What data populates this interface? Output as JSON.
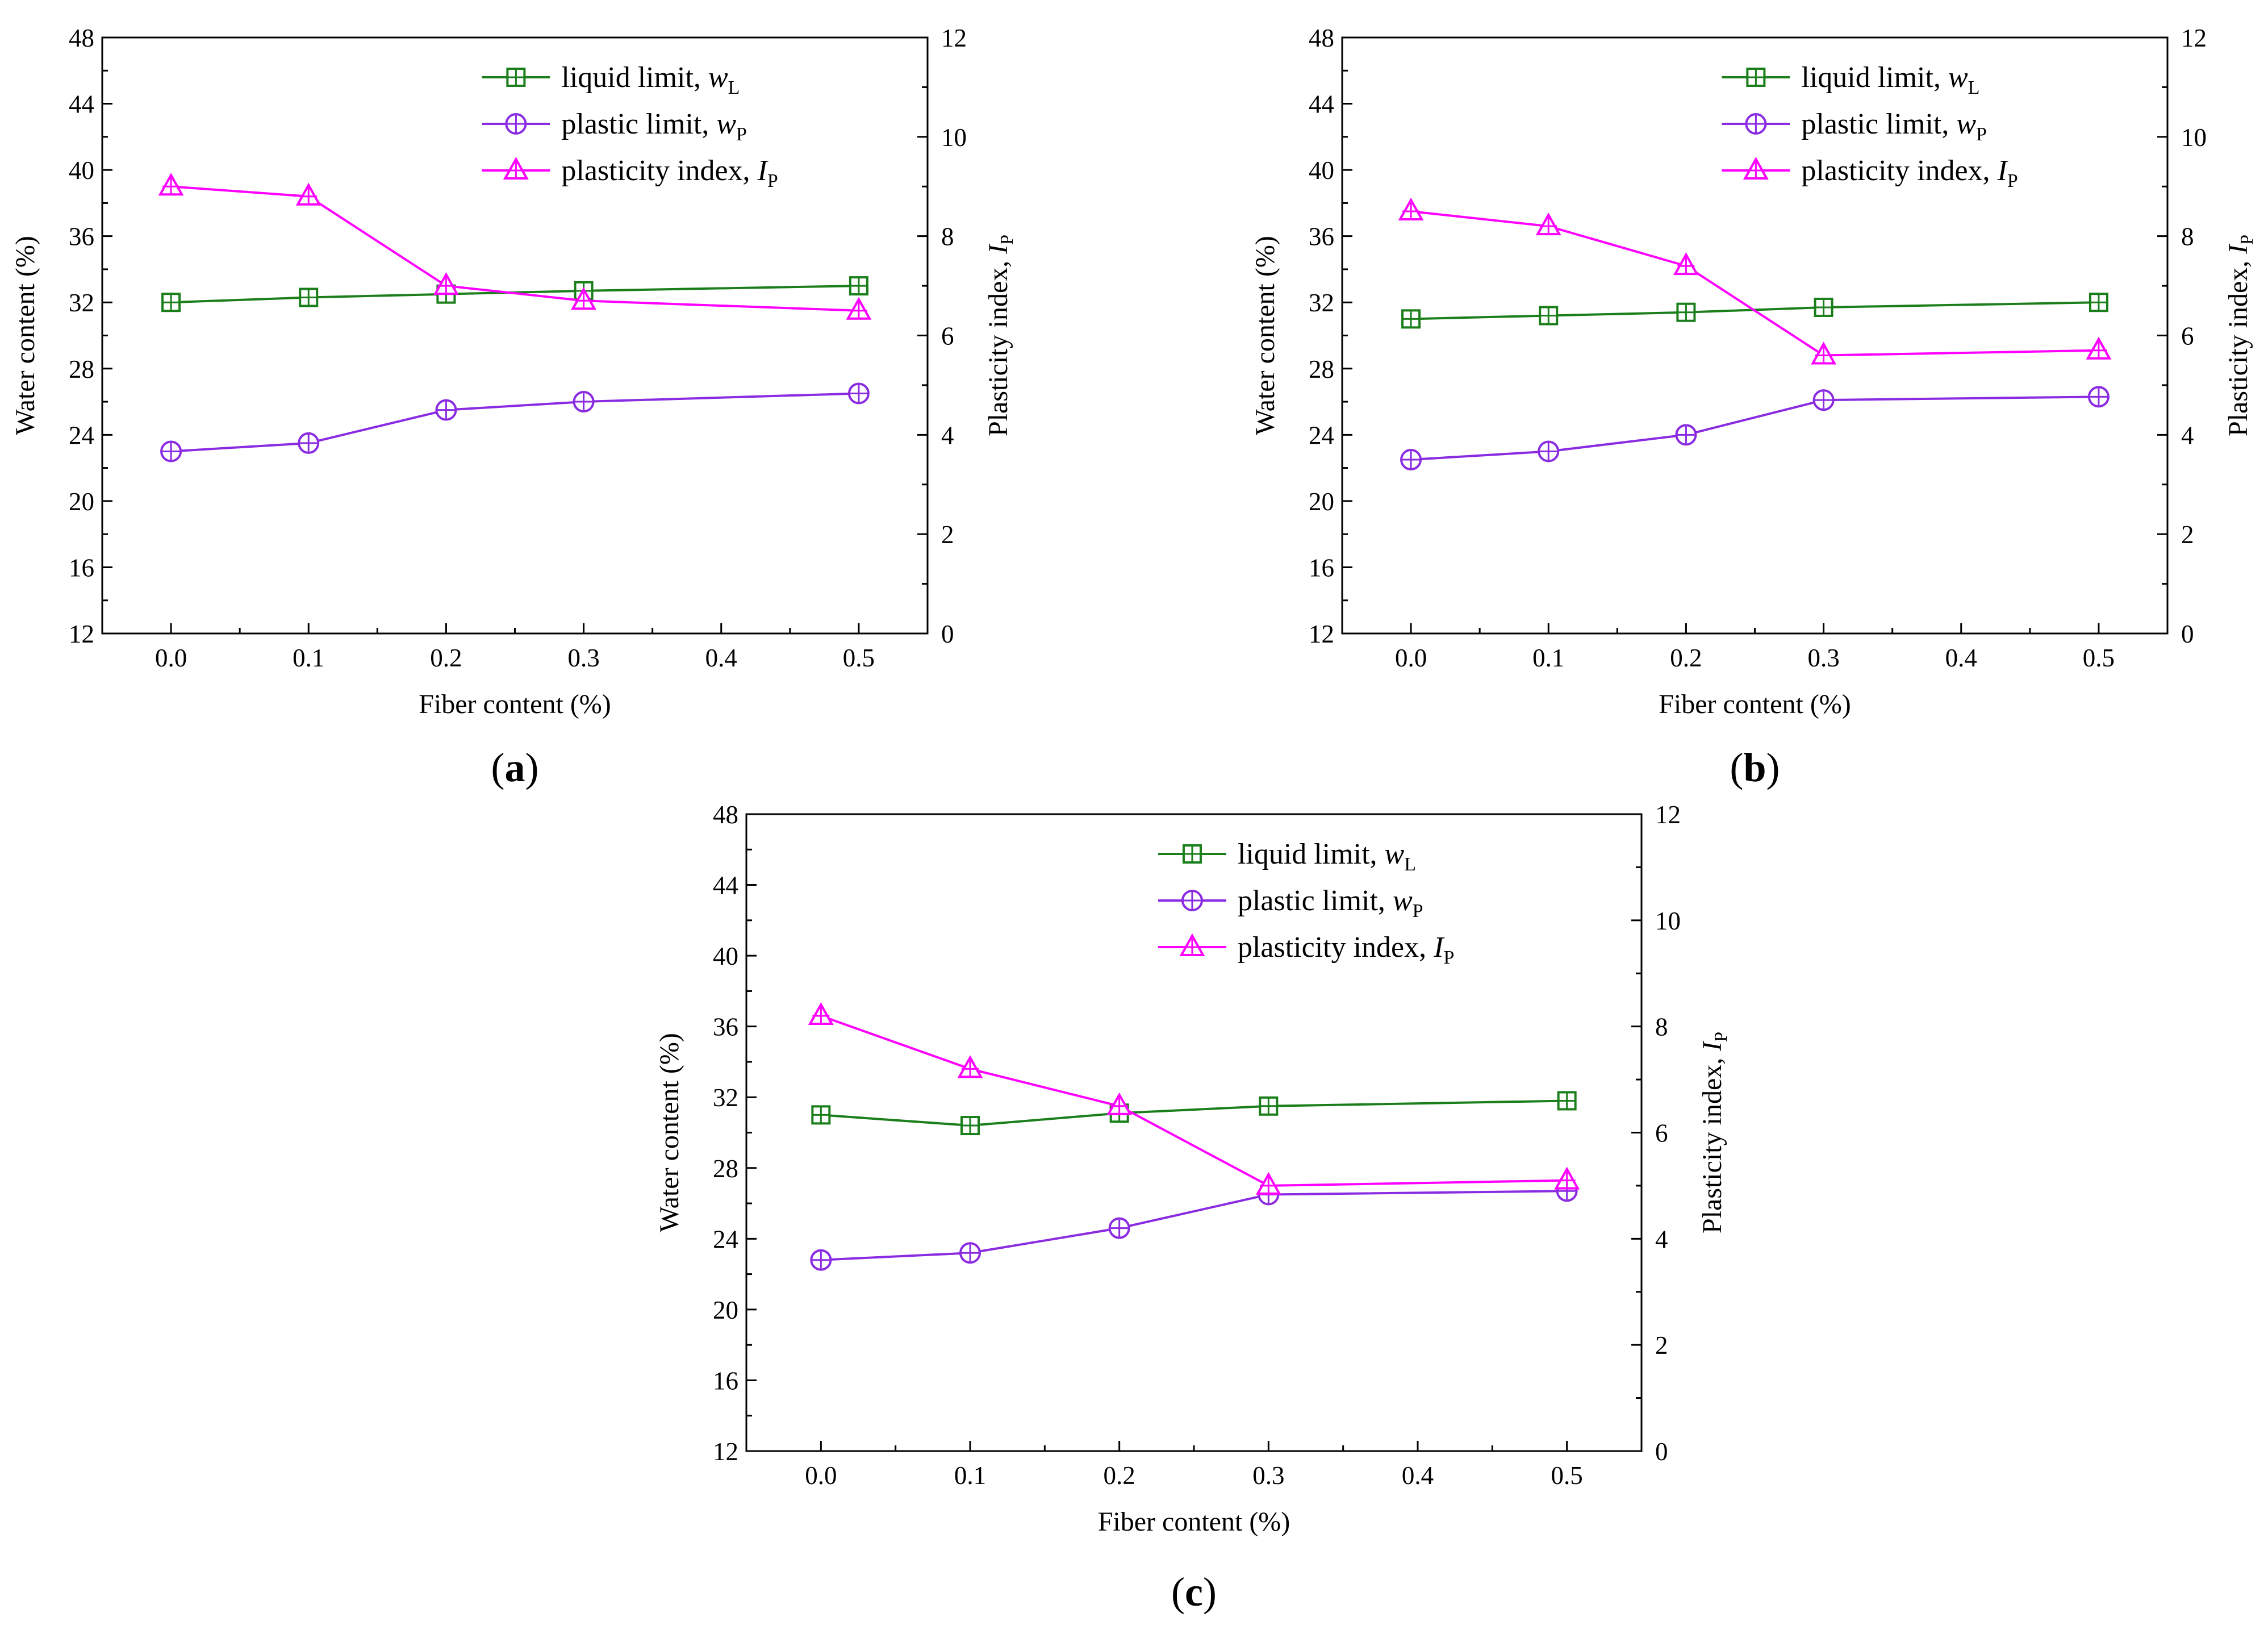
{
  "chart_data": [
    {
      "type": "line",
      "panel_label": "a",
      "xlabel": "Fiber content (%)",
      "ylabel_left": "Water content (%)",
      "ylabel_right": {
        "text": "Plasticity index, ",
        "var": "I",
        "sub": "P"
      },
      "x": [
        0.0,
        0.1,
        0.2,
        0.3,
        0.5
      ],
      "xlim": [
        -0.05,
        0.55
      ],
      "xticks": [
        "0.0",
        "0.1",
        "0.2",
        "0.3",
        "0.4",
        "0.5"
      ],
      "ylim_left": [
        12,
        48
      ],
      "yticks_left": [
        "12",
        "16",
        "20",
        "24",
        "28",
        "32",
        "36",
        "40",
        "44",
        "48"
      ],
      "ylim_right": [
        0,
        12
      ],
      "yticks_right": [
        "0",
        "2",
        "4",
        "6",
        "8",
        "10",
        "12"
      ],
      "series": [
        {
          "name": "liquid limit, ",
          "var": "w",
          "sub": "L",
          "axis": "left",
          "marker": "square",
          "color": "#1a7f1a",
          "values": [
            32.0,
            32.3,
            32.5,
            32.7,
            33.0
          ]
        },
        {
          "name": "plastic limit, ",
          "var": "w",
          "sub": "P",
          "axis": "left",
          "marker": "circle",
          "color": "#8a2be2",
          "values": [
            23.0,
            23.5,
            25.5,
            26.0,
            26.5
          ]
        },
        {
          "name": "plasticity index,  ",
          "var": "I",
          "sub": "P",
          "axis": "right",
          "marker": "triangle",
          "color": "#ff00ff",
          "values": [
            9.0,
            8.8,
            7.0,
            6.7,
            6.5
          ]
        }
      ]
    },
    {
      "type": "line",
      "panel_label": "b",
      "xlabel": "Fiber content (%)",
      "ylabel_left": "Water content (%)",
      "ylabel_right": {
        "text": "Plasticity index, ",
        "var": "I",
        "sub": "P"
      },
      "x": [
        0.0,
        0.1,
        0.2,
        0.3,
        0.5
      ],
      "xlim": [
        -0.05,
        0.55
      ],
      "xticks": [
        "0.0",
        "0.1",
        "0.2",
        "0.3",
        "0.4",
        "0.5"
      ],
      "ylim_left": [
        12,
        48
      ],
      "yticks_left": [
        "12",
        "16",
        "20",
        "24",
        "28",
        "32",
        "36",
        "40",
        "44",
        "48"
      ],
      "ylim_right": [
        0,
        12
      ],
      "yticks_right": [
        "0",
        "2",
        "4",
        "6",
        "8",
        "10",
        "12"
      ],
      "series": [
        {
          "name": "liquid limit, ",
          "var": "w",
          "sub": "L",
          "axis": "left",
          "marker": "square",
          "color": "#1a7f1a",
          "values": [
            31.0,
            31.2,
            31.4,
            31.7,
            32.0
          ]
        },
        {
          "name": "plastic limit, ",
          "var": "w",
          "sub": "P",
          "axis": "left",
          "marker": "circle",
          "color": "#8a2be2",
          "values": [
            22.5,
            23.0,
            24.0,
            26.1,
            26.3
          ]
        },
        {
          "name": "plasticity index,  ",
          "var": "I",
          "sub": "P",
          "axis": "right",
          "marker": "triangle",
          "color": "#ff00ff",
          "values": [
            8.5,
            8.2,
            7.4,
            5.6,
            5.7
          ]
        }
      ]
    },
    {
      "type": "line",
      "panel_label": "c",
      "xlabel": "Fiber content (%)",
      "ylabel_left": "Water content (%)",
      "ylabel_right": {
        "text": "Plasticity index, ",
        "var": "I",
        "sub": "P"
      },
      "x": [
        0.0,
        0.1,
        0.2,
        0.3,
        0.5
      ],
      "xlim": [
        -0.05,
        0.55
      ],
      "xticks": [
        "0.0",
        "0.1",
        "0.2",
        "0.3",
        "0.4",
        "0.5"
      ],
      "ylim_left": [
        12,
        48
      ],
      "yticks_left": [
        "12",
        "16",
        "20",
        "24",
        "28",
        "32",
        "36",
        "40",
        "44",
        "48"
      ],
      "ylim_right": [
        0,
        12
      ],
      "yticks_right": [
        "0",
        "2",
        "4",
        "6",
        "8",
        "10",
        "12"
      ],
      "series": [
        {
          "name": "liquid limit, ",
          "var": "w",
          "sub": "L",
          "axis": "left",
          "marker": "square",
          "color": "#1a7f1a",
          "values": [
            31.0,
            30.4,
            31.1,
            31.5,
            31.8
          ]
        },
        {
          "name": "plastic limit, ",
          "var": "w",
          "sub": "P",
          "axis": "left",
          "marker": "circle",
          "color": "#8a2be2",
          "values": [
            22.8,
            23.2,
            24.6,
            26.5,
            26.7
          ]
        },
        {
          "name": "plasticity index,  ",
          "var": "I",
          "sub": "P",
          "axis": "right",
          "marker": "triangle",
          "color": "#ff00ff",
          "values": [
            8.2,
            7.2,
            6.5,
            5.0,
            5.1
          ]
        }
      ]
    }
  ]
}
